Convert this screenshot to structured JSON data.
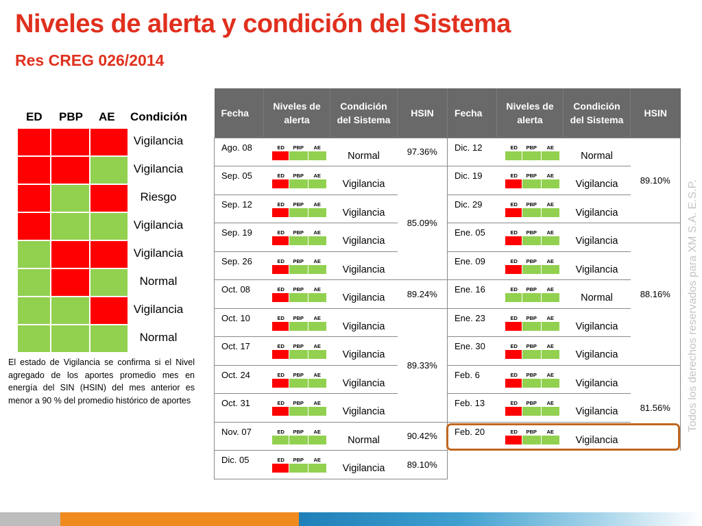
{
  "header": {
    "title": "Niveles de alerta y condición del Sistema",
    "subtitle": "Res CREG 026/2014"
  },
  "colors": {
    "red": "#ff0000",
    "green": "#92d050",
    "title": "#e0301e",
    "header_bg": "#696969",
    "highlight": "#c0661e"
  },
  "legend": {
    "headers": [
      "ED",
      "PBP",
      "AE",
      "Condición"
    ],
    "rows": [
      {
        "cells": [
          "red",
          "red",
          "red"
        ],
        "condition": "Vigilancia"
      },
      {
        "cells": [
          "red",
          "red",
          "green"
        ],
        "condition": "Vigilancia"
      },
      {
        "cells": [
          "red",
          "green",
          "red"
        ],
        "condition": "Riesgo"
      },
      {
        "cells": [
          "red",
          "green",
          "green"
        ],
        "condition": "Vigilancia"
      },
      {
        "cells": [
          "green",
          "red",
          "red"
        ],
        "condition": "Vigilancia"
      },
      {
        "cells": [
          "green",
          "red",
          "green"
        ],
        "condition": "Normal"
      },
      {
        "cells": [
          "green",
          "green",
          "red"
        ],
        "condition": "Vigilancia"
      },
      {
        "cells": [
          "green",
          "green",
          "green"
        ],
        "condition": "Normal"
      }
    ]
  },
  "note": "El estado de Vigilancia se confirma si el Nivel agregado de los aportes promedio mes en energía del SIN (HSIN) del mes anterior es menor a  90 % del promedio histórico de aportes",
  "table": {
    "headers": [
      "Fecha",
      "Niveles de alerta",
      "Condición del Sistema",
      "HSIN",
      "Fecha",
      "Niveles de alerta",
      "Condición del Sistema",
      "HSIN"
    ],
    "mini_labels": [
      "ED",
      "PBP",
      "AE"
    ],
    "left": [
      {
        "fecha": "Ago. 08",
        "levels": [
          "red",
          "green",
          "green"
        ],
        "cond": "Normal"
      },
      {
        "fecha": "Sep. 05",
        "levels": [
          "red",
          "green",
          "green"
        ],
        "cond": "Vigilancia"
      },
      {
        "fecha": "Sep. 12",
        "levels": [
          "red",
          "green",
          "green"
        ],
        "cond": "Vigilancia"
      },
      {
        "fecha": "Sep. 19",
        "levels": [
          "red",
          "green",
          "green"
        ],
        "cond": "Vigilancia"
      },
      {
        "fecha": "Sep. 26",
        "levels": [
          "red",
          "green",
          "green"
        ],
        "cond": "Vigilancia"
      },
      {
        "fecha": "Oct. 08",
        "levels": [
          "red",
          "green",
          "green"
        ],
        "cond": "Vigilancia"
      },
      {
        "fecha": "Oct. 10",
        "levels": [
          "red",
          "green",
          "green"
        ],
        "cond": "Vigilancia"
      },
      {
        "fecha": "Oct. 17",
        "levels": [
          "red",
          "green",
          "green"
        ],
        "cond": "Vigilancia"
      },
      {
        "fecha": "Oct. 24",
        "levels": [
          "red",
          "green",
          "green"
        ],
        "cond": "Vigilancia"
      },
      {
        "fecha": "Oct. 31",
        "levels": [
          "red",
          "green",
          "green"
        ],
        "cond": "Vigilancia"
      },
      {
        "fecha": "Nov. 07",
        "levels": [
          "green",
          "green",
          "green"
        ],
        "cond": "Normal"
      },
      {
        "fecha": "Dic. 05",
        "levels": [
          "red",
          "green",
          "green"
        ],
        "cond": "Vigilancia"
      }
    ],
    "left_hsin": [
      {
        "rows": 1,
        "value": "97.36%"
      },
      {
        "rows": 4,
        "value": "85.09%"
      },
      {
        "rows": 1,
        "value": "89.24%"
      },
      {
        "rows": 4,
        "value": "89.33%"
      },
      {
        "rows": 1,
        "value": "90.42%"
      },
      {
        "rows": 1,
        "value": "89.10%"
      }
    ],
    "right": [
      {
        "fecha": "Dic.  12",
        "levels": [
          "green",
          "green",
          "green"
        ],
        "cond": "Normal"
      },
      {
        "fecha": "Dic.  19",
        "levels": [
          "red",
          "green",
          "green"
        ],
        "cond": "Vigilancia"
      },
      {
        "fecha": "Dic.  29",
        "levels": [
          "red",
          "green",
          "green"
        ],
        "cond": "Vigilancia"
      },
      {
        "fecha": "Ene. 05",
        "levels": [
          "red",
          "green",
          "green"
        ],
        "cond": "Vigilancia"
      },
      {
        "fecha": "Ene. 09",
        "levels": [
          "red",
          "green",
          "green"
        ],
        "cond": "Vigilancia"
      },
      {
        "fecha": "Ene. 16",
        "levels": [
          "green",
          "green",
          "green"
        ],
        "cond": "Normal"
      },
      {
        "fecha": "Ene. 23",
        "levels": [
          "red",
          "green",
          "green"
        ],
        "cond": "Vigilancia"
      },
      {
        "fecha": "Ene. 30",
        "levels": [
          "red",
          "green",
          "green"
        ],
        "cond": "Vigilancia"
      },
      {
        "fecha": "Feb. 6",
        "levels": [
          "red",
          "green",
          "green"
        ],
        "cond": "Vigilancia"
      },
      {
        "fecha": "Feb. 13",
        "levels": [
          "red",
          "green",
          "green"
        ],
        "cond": "Vigilancia"
      },
      {
        "fecha": "Feb. 20",
        "levels": [
          "red",
          "green",
          "green"
        ],
        "cond": "Vigilancia"
      }
    ],
    "right_hsin": [
      {
        "rows": 3,
        "value": "89.10%"
      },
      {
        "rows": 5,
        "value": "88.16%"
      },
      {
        "rows": 3,
        "value": "81.56%"
      }
    ]
  },
  "watermark": "Todos los derechos reservados para XM S.A. E.S.P."
}
